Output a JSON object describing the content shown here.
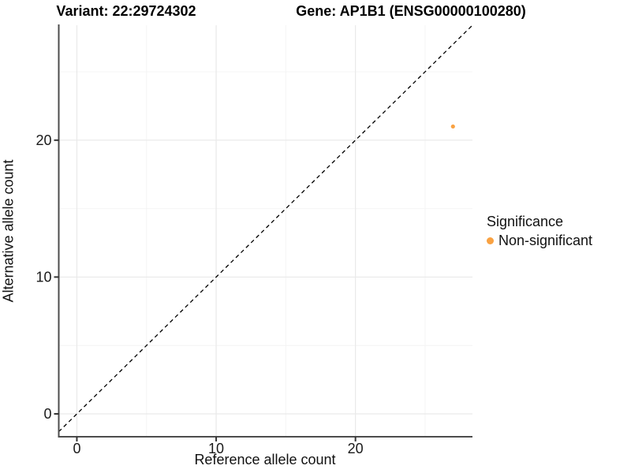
{
  "titles": {
    "variant": "Variant: 22:29724302",
    "gene": "Gene: AP1B1 (ENSG00000100280)"
  },
  "legend": {
    "title": "Significance",
    "items": [
      {
        "label": "Non-significant",
        "color": "#F9A242",
        "marker": "circle-icon"
      }
    ]
  },
  "colors": {
    "point_orange": "#F9A242",
    "axis_line": "#4d4d4d",
    "tick_mark": "#333333",
    "tick_label": "#1a1a1a",
    "grid_major": "#e9e9e9",
    "grid_minor": "#f4f4f4",
    "reference_line": "#000000"
  },
  "chart_data": {
    "type": "scatter",
    "title_left": "Variant: 22:29724302",
    "title_right": "Gene: AP1B1 (ENSG00000100280)",
    "xlabel": "Reference allele count",
    "ylabel": "Alternative allele count",
    "xlim": [
      -1.3,
      28.4
    ],
    "ylim": [
      -1.67,
      28.4
    ],
    "x_major_ticks": [
      0,
      10,
      20
    ],
    "y_major_ticks": [
      0,
      10,
      20
    ],
    "x_minor_ticks": [
      5,
      15,
      25
    ],
    "y_minor_ticks": [
      5,
      15,
      25
    ],
    "grid": true,
    "legend_position": "right",
    "legend_title": "Significance",
    "reference_line": {
      "type": "identity y=x",
      "style": "dashed",
      "color": "#000000"
    },
    "series": [
      {
        "name": "Non-significant",
        "color": "#F9A242",
        "points": [
          {
            "x": 27,
            "y": 21
          }
        ]
      }
    ]
  }
}
